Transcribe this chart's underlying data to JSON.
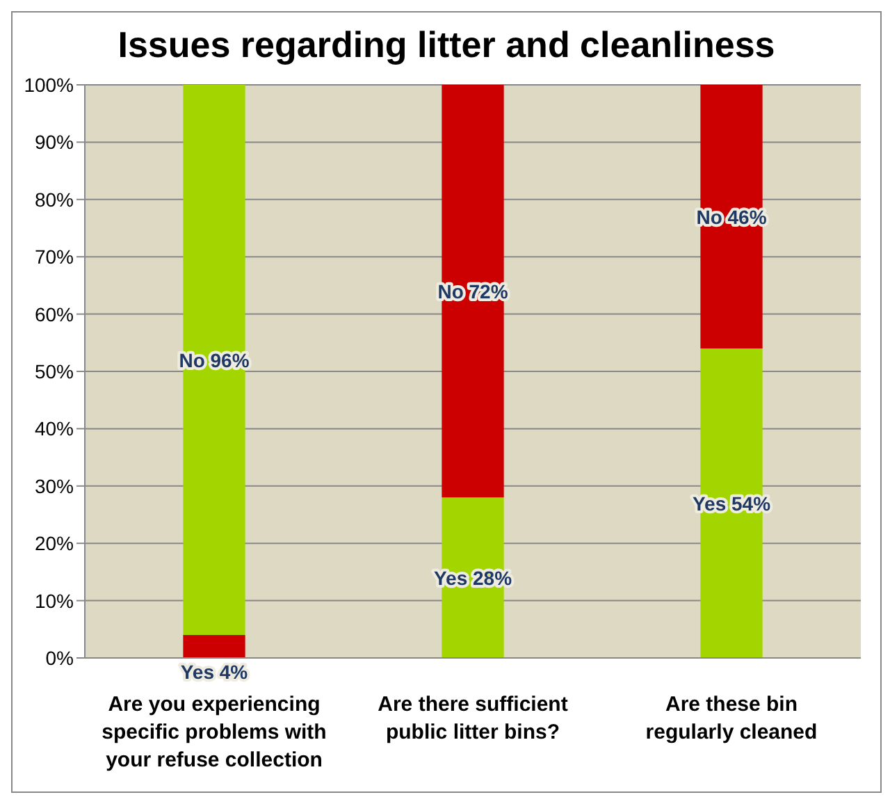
{
  "chart_data": {
    "type": "bar",
    "title": "Issues regarding litter and cleanliness",
    "stacked": true,
    "categories": [
      "Are you experiencing specific problems with your refuse collection",
      "Are there sufficient public litter bins?",
      "Are these bin regularly cleaned"
    ],
    "series": [
      {
        "colors": [
          "#cc0000",
          "#a3d600",
          "#a3d600"
        ],
        "values": [
          4,
          28,
          54
        ],
        "value_labels": [
          "Yes 4%",
          "Yes 28%",
          "Yes 54%"
        ]
      },
      {
        "colors": [
          "#a3d600",
          "#cc0000",
          "#cc0000"
        ],
        "values": [
          96,
          72,
          46
        ],
        "value_labels": [
          "No 96%",
          "No 72%",
          "No 46%"
        ]
      }
    ],
    "ylim": [
      0,
      100
    ],
    "yticks": [
      {
        "value": 0,
        "label": "0%"
      },
      {
        "value": 10,
        "label": "10%"
      },
      {
        "value": 20,
        "label": "20%"
      },
      {
        "value": 30,
        "label": "30%"
      },
      {
        "value": 40,
        "label": "40%"
      },
      {
        "value": 50,
        "label": "50%"
      },
      {
        "value": 60,
        "label": "60%"
      },
      {
        "value": 70,
        "label": "70%"
      },
      {
        "value": 80,
        "label": "80%"
      },
      {
        "value": 90,
        "label": "90%"
      },
      {
        "value": 100,
        "label": "100%"
      }
    ],
    "grid": "y",
    "legend": false
  }
}
